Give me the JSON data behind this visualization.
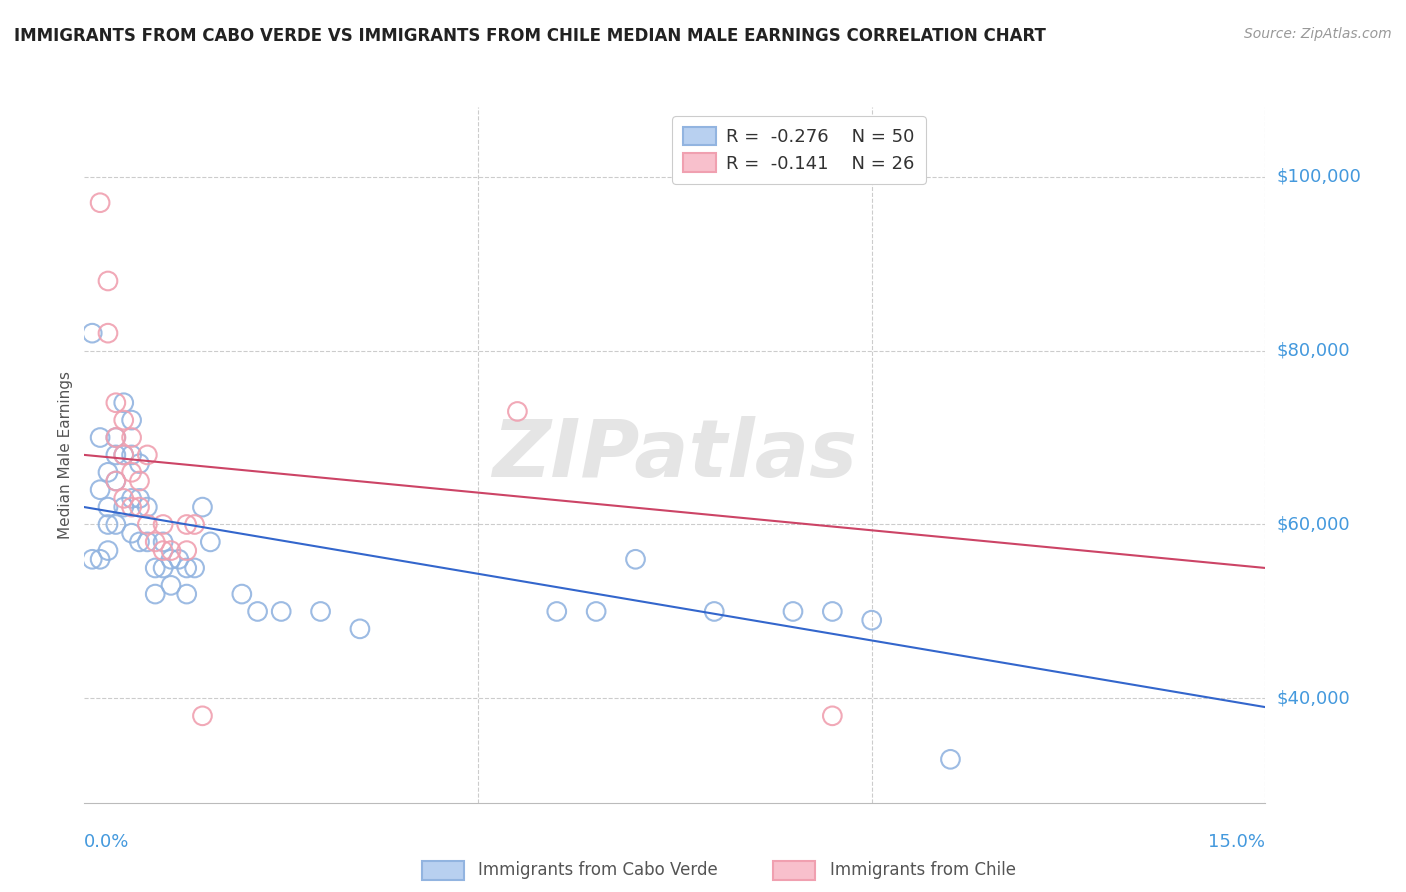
{
  "title": "IMMIGRANTS FROM CABO VERDE VS IMMIGRANTS FROM CHILE MEDIAN MALE EARNINGS CORRELATION CHART",
  "source": "Source: ZipAtlas.com",
  "ylabel": "Median Male Earnings",
  "yticks": [
    40000,
    60000,
    80000,
    100000
  ],
  "ytick_labels": [
    "$40,000",
    "$60,000",
    "$80,000",
    "$100,000"
  ],
  "xlim": [
    0.0,
    0.15
  ],
  "ylim": [
    28000,
    108000
  ],
  "color_blue": "#92b4e0",
  "color_pink": "#f0a0b0",
  "color_blue_line": "#3366cc",
  "color_pink_line": "#cc4466",
  "color_axis_labels": "#4499dd",
  "cabo_verde_x": [
    0.001,
    0.001,
    0.002,
    0.002,
    0.002,
    0.003,
    0.003,
    0.003,
    0.003,
    0.004,
    0.004,
    0.004,
    0.004,
    0.005,
    0.005,
    0.005,
    0.006,
    0.006,
    0.006,
    0.006,
    0.007,
    0.007,
    0.007,
    0.008,
    0.008,
    0.009,
    0.009,
    0.01,
    0.01,
    0.011,
    0.011,
    0.012,
    0.013,
    0.013,
    0.014,
    0.015,
    0.016,
    0.02,
    0.022,
    0.025,
    0.03,
    0.035,
    0.06,
    0.065,
    0.07,
    0.08,
    0.09,
    0.095,
    0.1,
    0.11
  ],
  "cabo_verde_y": [
    82000,
    56000,
    70000,
    64000,
    56000,
    66000,
    62000,
    60000,
    57000,
    70000,
    68000,
    65000,
    60000,
    74000,
    68000,
    62000,
    72000,
    68000,
    63000,
    59000,
    67000,
    63000,
    58000,
    62000,
    58000,
    55000,
    52000,
    58000,
    55000,
    56000,
    53000,
    56000,
    55000,
    52000,
    55000,
    62000,
    58000,
    52000,
    50000,
    50000,
    50000,
    48000,
    50000,
    50000,
    56000,
    50000,
    50000,
    50000,
    49000,
    33000
  ],
  "chile_x": [
    0.002,
    0.003,
    0.003,
    0.004,
    0.004,
    0.004,
    0.005,
    0.005,
    0.005,
    0.006,
    0.006,
    0.006,
    0.007,
    0.007,
    0.008,
    0.008,
    0.009,
    0.01,
    0.01,
    0.011,
    0.013,
    0.013,
    0.014,
    0.015,
    0.055,
    0.095
  ],
  "chile_y": [
    97000,
    88000,
    82000,
    74000,
    70000,
    65000,
    72000,
    68000,
    63000,
    70000,
    66000,
    62000,
    65000,
    62000,
    68000,
    60000,
    58000,
    60000,
    57000,
    57000,
    60000,
    57000,
    60000,
    38000,
    73000,
    38000
  ],
  "cabo_verde_trendline": [
    62000,
    39000
  ],
  "chile_trendline": [
    68000,
    55000
  ],
  "watermark": "ZIPatlas",
  "legend_r1": "-0.276",
  "legend_n1": "50",
  "legend_r2": "-0.141",
  "legend_n2": "26",
  "bottom_label1": "Immigrants from Cabo Verde",
  "bottom_label2": "Immigrants from Chile"
}
